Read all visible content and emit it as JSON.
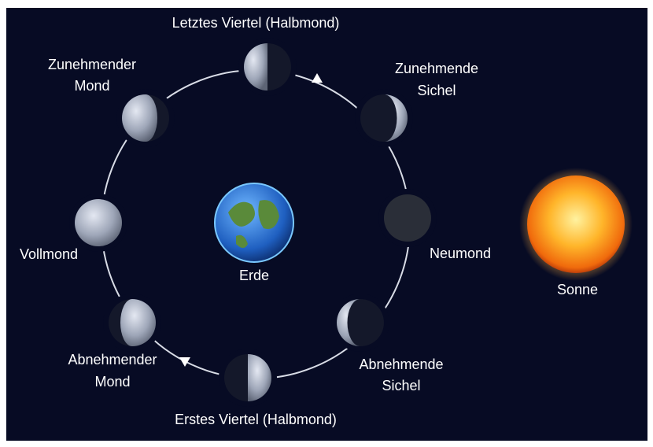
{
  "moons": [
    {
      "label": [
        "Letztes Viertel (Halbmond)"
      ]
    },
    {
      "label": [
        "Zunehmende",
        "Sichel"
      ]
    },
    {
      "label": [
        "Neumond"
      ]
    },
    {
      "label": [
        "Abnehmende",
        "Sichel"
      ]
    },
    {
      "label": [
        "Erstes Viertel (Halbmond)"
      ]
    },
    {
      "label": [
        "Abnehmender",
        "Mond"
      ]
    },
    {
      "label": [
        "Vollmond"
      ]
    },
    {
      "label": [
        "Zunehmender",
        "Mond"
      ]
    }
  ],
  "earth": {
    "label": "Erde"
  },
  "sun": {
    "label": "Sonne"
  }
}
